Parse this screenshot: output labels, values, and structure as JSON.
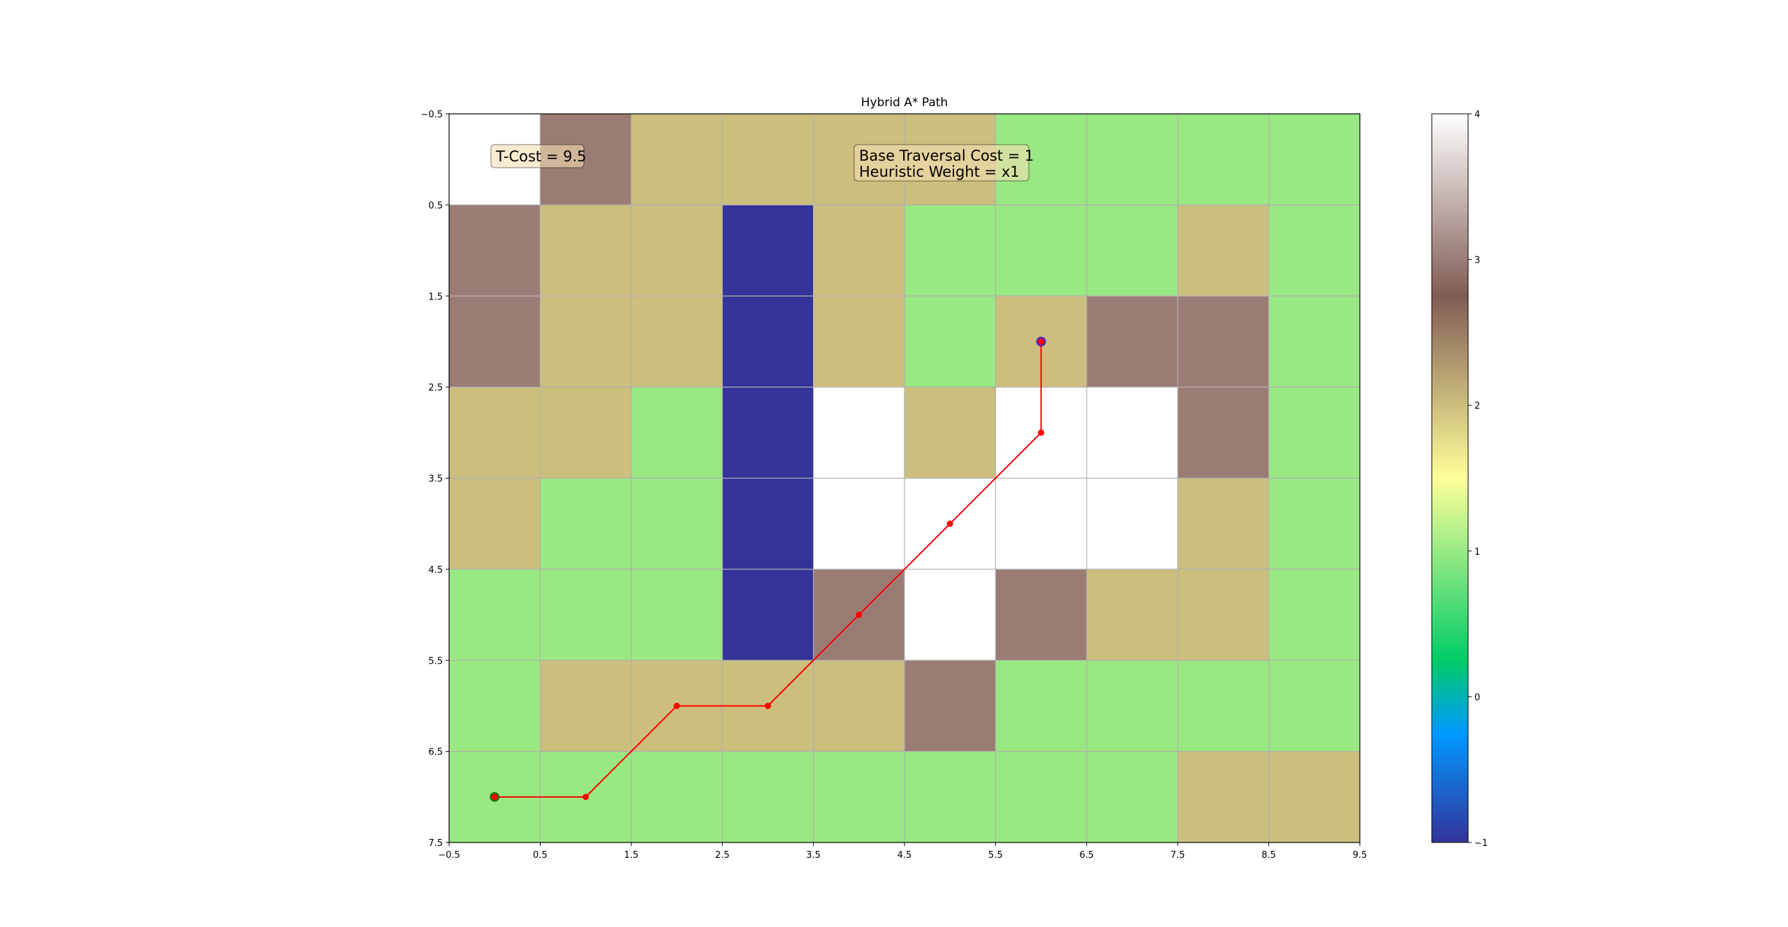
{
  "chart_data": {
    "type": "heatmap",
    "title": "Hybrid A* Path",
    "xlabel": "",
    "ylabel": "",
    "xlim": [
      -0.5,
      9.5
    ],
    "ylim": [
      7.5,
      -0.5
    ],
    "x_ticks": [
      "-0.5",
      "0.5",
      "1.5",
      "2.5",
      "3.5",
      "4.5",
      "5.5",
      "6.5",
      "7.5",
      "8.5",
      "9.5"
    ],
    "y_ticks": [
      "-0.5",
      "0.5",
      "1.5",
      "2.5",
      "3.5",
      "4.5",
      "5.5",
      "6.5",
      "7.5"
    ],
    "grid": true,
    "colormap": "terrain",
    "grid_values": [
      [
        4,
        3,
        2,
        2,
        2,
        2,
        1,
        1,
        1,
        1
      ],
      [
        3,
        2,
        2,
        -1,
        2,
        1,
        1,
        1,
        2,
        1
      ],
      [
        3,
        2,
        2,
        -1,
        2,
        1,
        2,
        3,
        3,
        1
      ],
      [
        2,
        2,
        1,
        -1,
        4,
        2,
        4,
        4,
        3,
        1
      ],
      [
        2,
        1,
        1,
        -1,
        4,
        4,
        4,
        4,
        2,
        1
      ],
      [
        1,
        1,
        1,
        -1,
        3,
        4,
        3,
        2,
        2,
        1
      ],
      [
        1,
        2,
        2,
        2,
        2,
        3,
        1,
        1,
        1,
        1
      ],
      [
        1,
        1,
        1,
        1,
        1,
        1,
        1,
        1,
        2,
        2
      ]
    ],
    "path": {
      "color": "#ff0000",
      "points": [
        [
          0,
          7
        ],
        [
          1,
          7
        ],
        [
          2,
          6
        ],
        [
          3,
          6
        ],
        [
          4,
          5
        ],
        [
          5,
          4
        ],
        [
          6,
          3
        ],
        [
          6,
          2
        ]
      ]
    },
    "start": {
      "x": 0,
      "y": 7,
      "color": "#1a7a1a"
    },
    "goal": {
      "x": 6,
      "y": 2,
      "color": "#4b2bbd"
    },
    "colorbar": {
      "min": -1,
      "max": 4,
      "ticks": [
        "-1",
        "0",
        "1",
        "2",
        "3",
        "4"
      ]
    },
    "annotations": {
      "tcost": "T-Cost = 9.5",
      "base_cost": "Base Traversal Cost = 1",
      "heuristic": "Heuristic Weight = x1"
    }
  }
}
